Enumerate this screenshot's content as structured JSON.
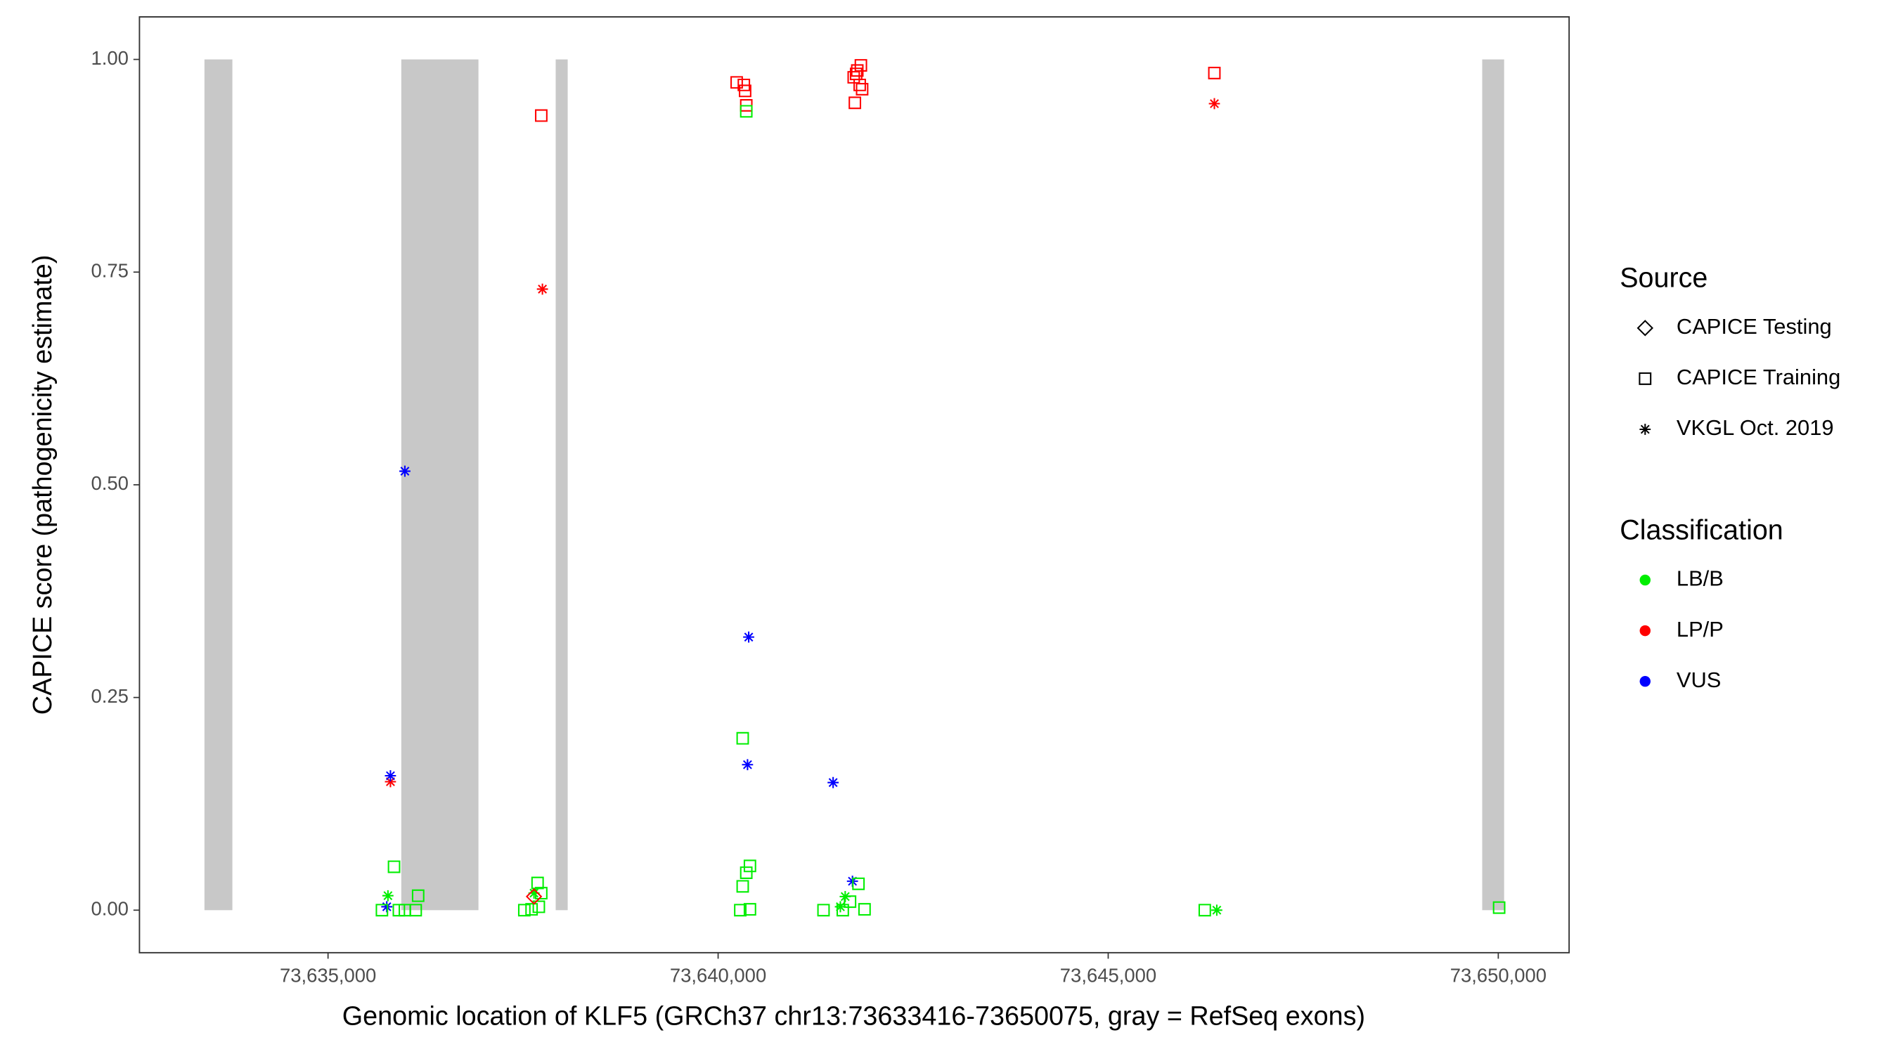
{
  "chart_data": {
    "type": "scatter",
    "x_label": "Genomic location of KLF5 (GRCh37 chr13:73633416-73650075, gray = RefSeq exons)",
    "y_label": "CAPICE score (pathogenicity estimate)",
    "xlim": [
      73632583,
      73650908
    ],
    "ylim": [
      -0.05,
      1.05
    ],
    "xticks": [
      {
        "value": 73635000,
        "label": "73,635,000"
      },
      {
        "value": 73640000,
        "label": "73,640,000"
      },
      {
        "value": 73645000,
        "label": "73,645,000"
      },
      {
        "value": 73650000,
        "label": "73,650,000"
      }
    ],
    "yticks": [
      {
        "value": 0,
        "label": "0.00"
      },
      {
        "value": 0.25,
        "label": "0.25"
      },
      {
        "value": 0.5,
        "label": "0.50"
      },
      {
        "value": 0.75,
        "label": "0.75"
      },
      {
        "value": 1,
        "label": "1.00"
      }
    ],
    "exon_color": "#c8c8c8",
    "exons": [
      [
        73633416,
        73633774
      ],
      [
        73635939,
        73636928
      ],
      [
        73637918,
        73638072
      ],
      [
        73649794,
        73650075
      ]
    ],
    "shape_legend": {
      "title": "Source",
      "items": [
        {
          "name": "CAPICE Testing",
          "shape": "diamond"
        },
        {
          "name": "CAPICE Training",
          "shape": "square"
        },
        {
          "name": "VKGL Oct. 2019",
          "shape": "asterisk"
        }
      ]
    },
    "color_legend": {
      "title": "Classification",
      "items": [
        {
          "name": "LB/B",
          "color": "#00ee00"
        },
        {
          "name": "LP/P",
          "color": "#ff0000"
        },
        {
          "name": "VUS",
          "color": "#0000ff"
        }
      ]
    },
    "series": [
      {
        "source": 1,
        "class": 1,
        "x": [
          73637733,
          73640238,
          73640330,
          73640346,
          73640361,
          73641738,
          73641769,
          73641784,
          73641830,
          73641846,
          73641815,
          73641753,
          73646361
        ],
        "y": [
          0.934,
          0.973,
          0.97,
          0.963,
          0.946,
          0.979,
          0.983,
          0.987,
          0.993,
          0.965,
          0.97,
          0.949,
          0.984
        ]
      },
      {
        "source": 2,
        "class": 1,
        "x": [
          73637748,
          73646361,
          73635800
        ],
        "y": [
          0.73,
          0.948,
          0.151
        ]
      },
      {
        "source": 2,
        "class": 2,
        "x": [
          73635985,
          73635800,
          73635753,
          73640392,
          73640377,
          73641474,
          73641722
        ],
        "y": [
          0.516,
          0.158,
          0.004,
          0.321,
          0.171,
          0.15,
          0.034
        ]
      },
      {
        "source": 2,
        "class": 0,
        "x": [
          73635768,
          73637640,
          73646392,
          73641629,
          73641567
        ],
        "y": [
          0.017,
          0.02,
          0.0,
          0.016,
          0.004
        ]
      },
      {
        "source": 1,
        "class": 0,
        "x": [
          73635846,
          73636155,
          73636124,
          73635691,
          73635908,
          73635985,
          73637686,
          73637516,
          73637609,
          73637702,
          73637733,
          73640361,
          73640315,
          73640361,
          73640408,
          73640315,
          73640284,
          73640408,
          73641351,
          73641598,
          73641691,
          73641799,
          73641877,
          73646238,
          73650011
        ],
        "y": [
          0.051,
          0.017,
          0.0,
          0.0,
          0.0,
          0.0,
          0.032,
          0.0,
          0.001,
          0.004,
          0.02,
          0.939,
          0.202,
          0.044,
          0.052,
          0.028,
          0.0,
          0.001,
          0.0,
          0.0,
          0.01,
          0.031,
          0.001,
          0.0,
          0.003
        ]
      },
      {
        "source": 0,
        "class": 1,
        "x": [
          73637640
        ],
        "y": [
          0.016
        ]
      }
    ]
  }
}
